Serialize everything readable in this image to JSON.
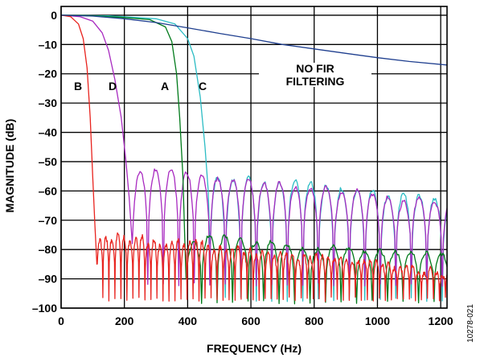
{
  "chart_data": {
    "type": "line",
    "xlabel": "FREQUENCY (Hz)",
    "ylabel": "MAGNITUDE (dB)",
    "xlim": [
      0,
      1220
    ],
    "ylim": [
      -100,
      3
    ],
    "x_ticks": [
      0,
      200,
      400,
      600,
      800,
      1000,
      1200
    ],
    "y_ticks": [
      0,
      -10,
      -20,
      -30,
      -40,
      -50,
      -60,
      -70,
      -80,
      -90,
      -100
    ],
    "x_tick_labels": [
      "0",
      "200",
      "400",
      "600",
      "800",
      "1000",
      "1200"
    ],
    "y_tick_labels": [
      "0",
      "–10",
      "–20",
      "–30",
      "–40",
      "–50",
      "–60",
      "–70",
      "–80",
      "–90",
      "–100"
    ],
    "grid": true,
    "series": [
      {
        "name": "NO FIR FILTERING",
        "color": "#1f3f8f",
        "kind": "smooth",
        "points": [
          [
            0,
            0
          ],
          [
            100,
            -0.3
          ],
          [
            200,
            -1.2
          ],
          [
            300,
            -2.5
          ],
          [
            400,
            -4.3
          ],
          [
            500,
            -6.2
          ],
          [
            600,
            -8.0
          ],
          [
            700,
            -10.0
          ],
          [
            800,
            -11.5
          ],
          [
            900,
            -13.0
          ],
          [
            1000,
            -14.5
          ],
          [
            1100,
            -15.8
          ],
          [
            1220,
            -17.0
          ]
        ]
      },
      {
        "name": "A",
        "color": "#007a1a",
        "kind": "filter",
        "points": [
          [
            0,
            0
          ],
          [
            100,
            -0.2
          ],
          [
            200,
            -0.8
          ],
          [
            280,
            -1.5
          ],
          [
            330,
            -4
          ],
          [
            350,
            -9
          ],
          [
            365,
            -20
          ],
          [
            375,
            -35
          ],
          [
            385,
            -55
          ],
          [
            392,
            -80
          ],
          [
            395,
            -90
          ]
        ],
        "lobe_width": 49,
        "lobe_peak_start": -76,
        "lobe_peak_end": -82,
        "floor": -98
      },
      {
        "name": "B",
        "color": "#e8231e",
        "kind": "filter",
        "points": [
          [
            0,
            0
          ],
          [
            30,
            -0.5
          ],
          [
            55,
            -3
          ],
          [
            70,
            -8
          ],
          [
            82,
            -18
          ],
          [
            92,
            -35
          ],
          [
            100,
            -55
          ],
          [
            107,
            -72
          ],
          [
            113,
            -85
          ]
        ],
        "lobe_width": 19,
        "lobe_peak_start": -75,
        "lobe_peak_end": -88,
        "floor": -97
      },
      {
        "name": "C",
        "color": "#2cbcc4",
        "kind": "filter",
        "points": [
          [
            0,
            0
          ],
          [
            150,
            -0.2
          ],
          [
            300,
            -1.2
          ],
          [
            360,
            -3
          ],
          [
            400,
            -8
          ],
          [
            420,
            -14
          ],
          [
            440,
            -28
          ],
          [
            455,
            -45
          ],
          [
            465,
            -60
          ],
          [
            470,
            -78
          ]
        ],
        "lobe_width": 49,
        "lobe_peak_start": -54,
        "lobe_peak_end": -64,
        "floor": -97
      },
      {
        "name": "D",
        "color": "#a82ac0",
        "kind": "filter",
        "points": [
          [
            0,
            0
          ],
          [
            60,
            -0.5
          ],
          [
            100,
            -2
          ],
          [
            130,
            -6
          ],
          [
            150,
            -12
          ],
          [
            170,
            -22
          ],
          [
            190,
            -35
          ],
          [
            205,
            -50
          ],
          [
            215,
            -62
          ],
          [
            225,
            -78
          ]
        ],
        "lobe_width": 49,
        "lobe_peak_start": -52,
        "lobe_peak_end": -64,
        "floor": -92
      }
    ],
    "annotations": {
      "label_b": "B",
      "label_d": "D",
      "label_a": "A",
      "label_c": "C",
      "no_fir_line1": "NO FIR",
      "no_fir_line2": "FILTERING"
    },
    "figure_id": "10278-021"
  }
}
